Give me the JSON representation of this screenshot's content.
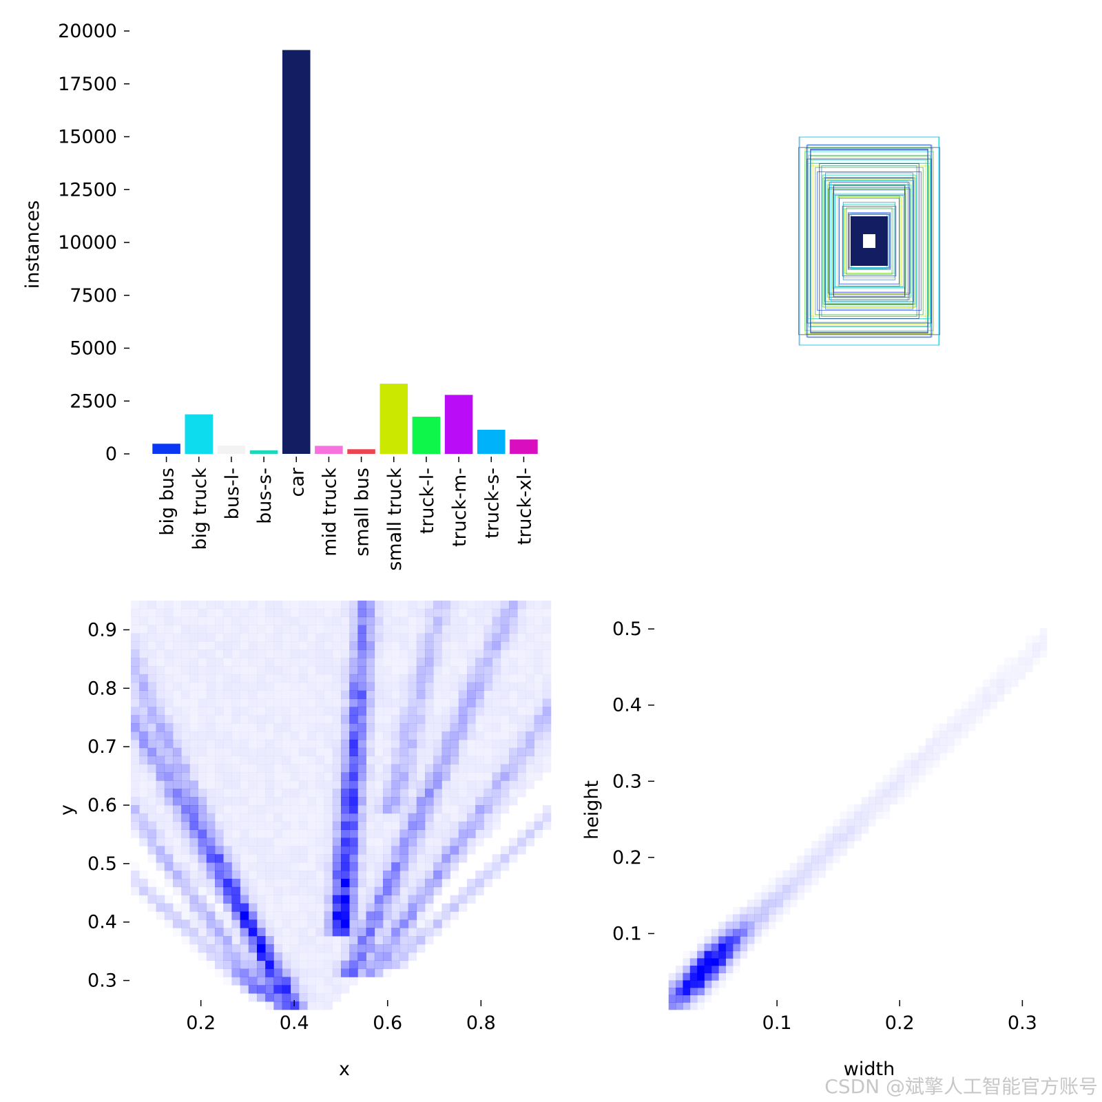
{
  "chart_data": [
    {
      "type": "bar",
      "panel": "top-left",
      "categories": [
        "big bus",
        "big truck",
        "bus-l-",
        "bus-s-",
        "car",
        "mid truck",
        "small bus",
        "small truck",
        "truck-l-",
        "truck-m-",
        "truck-s-",
        "truck-xl-"
      ],
      "values": [
        480,
        1870,
        390,
        170,
        19100,
        380,
        220,
        3320,
        1760,
        2790,
        1140,
        680
      ],
      "colors": [
        "#0b36f2",
        "#0ddbee",
        "#f3f3f3",
        "#1ed6b9",
        "#131d62",
        "#f772dc",
        "#ec4551",
        "#cbe900",
        "#0ff64a",
        "#bb0cf7",
        "#00b2f9",
        "#d90fbf"
      ],
      "ylabel": "instances",
      "xlabel": "",
      "ylim": [
        0,
        20000
      ],
      "yticks": [
        0,
        2500,
        5000,
        7500,
        10000,
        12500,
        15000,
        17500,
        20000
      ],
      "ytick_labels": [
        "0",
        "2500",
        "5000",
        "7500",
        "10000",
        "12500",
        "15000",
        "17500",
        "20000"
      ]
    },
    {
      "type": "box-overlay",
      "panel": "top-right",
      "description_source": "bounding boxes centered in a 1x1 frame, no axes",
      "box_colors": [
        "#131d62",
        "#1f77b4",
        "#0ddbee",
        "#1ed6b9",
        "#cbe900",
        "#2ca02c",
        "#0b36f2"
      ]
    },
    {
      "type": "heatmap",
      "panel": "bottom-left",
      "xlabel": "x",
      "ylabel": "y",
      "xticks": [
        0.2,
        0.4,
        0.6,
        0.8
      ],
      "xtick_labels": [
        "0.2",
        "0.4",
        "0.6",
        "0.8"
      ],
      "yticks": [
        0.3,
        0.4,
        0.5,
        0.6,
        0.7,
        0.8,
        0.9
      ],
      "ytick_labels": [
        "0.3",
        "0.4",
        "0.5",
        "0.6",
        "0.7",
        "0.8",
        "0.9"
      ],
      "xlim": [
        0.05,
        0.95
      ],
      "ylim": [
        0.25,
        0.95
      ],
      "cmap_color": "#0000ff"
    },
    {
      "type": "heatmap",
      "panel": "bottom-right",
      "xlabel": "width",
      "ylabel": "height",
      "xticks": [
        0.1,
        0.2,
        0.3
      ],
      "xtick_labels": [
        "0.1",
        "0.2",
        "0.3"
      ],
      "yticks": [
        0.1,
        0.2,
        0.3,
        0.4,
        0.5
      ],
      "ytick_labels": [
        "0.1",
        "0.2",
        "0.3",
        "0.4",
        "0.5"
      ],
      "xlim": [
        0.0,
        0.32
      ],
      "ylim": [
        0.0,
        0.53
      ],
      "cmap_color": "#0000ff"
    }
  ],
  "watermark": "CSDN @斌擎人工智能官方账号"
}
